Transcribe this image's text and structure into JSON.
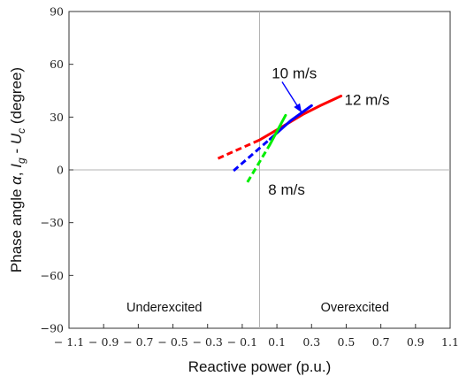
{
  "chart_data": {
    "type": "line",
    "xlabel": "Reactive power (p.u.)",
    "ylabel_parts": [
      "Phase angle ",
      "α",
      ", ",
      "I",
      "g",
      " - ",
      "U",
      "c",
      " (degree)"
    ],
    "xlim": [
      -1.1,
      1.1
    ],
    "ylim": [
      -90,
      90
    ],
    "x_ticks": [
      -1.1,
      -0.9,
      -0.7,
      -0.5,
      -0.3,
      -0.1,
      0.1,
      0.3,
      0.5,
      0.7,
      0.9,
      1.1
    ],
    "x_tick_labels": [
      "− 1.1",
      "− 0.9",
      "− 0.7",
      "− 0.5",
      "− 0.3",
      "− 0.1",
      "0.1",
      "0.3",
      "0.5",
      "0.7",
      "0.9",
      "1.1"
    ],
    "y_ticks": [
      90,
      60,
      30,
      0,
      -30,
      -60,
      -90
    ],
    "y_tick_labels": [
      "90",
      "60",
      "30",
      "0",
      "−30",
      "−60",
      "−90"
    ],
    "reference_lines": {
      "x": 0,
      "y": 0
    },
    "grid": false,
    "series": [
      {
        "name": "12 m/s",
        "color": "#ff0000",
        "dashed": {
          "x": [
            -0.24,
            0.0
          ],
          "y": [
            6.5,
            17.0
          ]
        },
        "solid": {
          "x": [
            0.0,
            0.13,
            0.25,
            0.35,
            0.47
          ],
          "y": [
            17.0,
            24.5,
            31.5,
            36.5,
            42.0
          ]
        }
      },
      {
        "name": "10 m/s",
        "color": "#0000ff",
        "dashed": {
          "x": [
            -0.15,
            0.06
          ],
          "y": [
            -0.5,
            17.5
          ]
        },
        "solid": {
          "x": [
            0.06,
            0.18,
            0.3
          ],
          "y": [
            17.5,
            28.0,
            36.5
          ]
        }
      },
      {
        "name": "8 m/s",
        "color": "#00ee00",
        "dashed": {
          "x": [
            -0.07,
            0.06
          ],
          "y": [
            -7.0,
            14.5
          ]
        },
        "solid": {
          "x": [
            0.06,
            0.15
          ],
          "y": [
            14.5,
            31.0
          ]
        }
      }
    ],
    "annotations": [
      {
        "text": "10 m/s",
        "label_at": [
          0.07,
          55
        ],
        "arrow_from": [
          0.13,
          50
        ],
        "arrow_to": [
          0.24,
          33
        ],
        "arrow_color": "#0000ff"
      },
      {
        "text": "12 m/s",
        "label_at": [
          0.49,
          40
        ],
        "arrow_from": null,
        "arrow_to": null,
        "arrow_color": null
      },
      {
        "text": "8 m/s",
        "label_at": [
          0.05,
          -11
        ],
        "arrow_from": null,
        "arrow_to": null,
        "arrow_color": null
      }
    ],
    "regions": [
      {
        "text": "Underexcited",
        "at": [
          -0.55,
          -78
        ]
      },
      {
        "text": "Overexcited",
        "at": [
          0.55,
          -78
        ]
      }
    ]
  }
}
